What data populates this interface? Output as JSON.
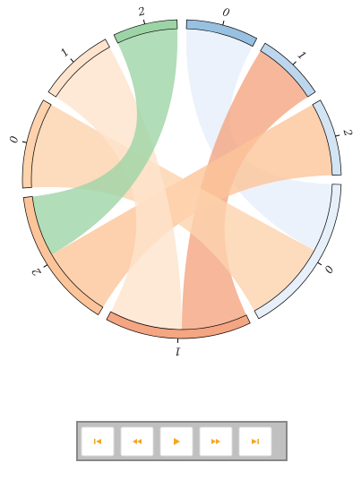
{
  "chart_data": {
    "type": "chord",
    "groups": [
      {
        "label": "0",
        "color": "#98c0e0"
      },
      {
        "label": "1",
        "color": "#bcd6ee"
      },
      {
        "label": "2",
        "color": "#d3e4f3"
      },
      {
        "label": "0",
        "color": "#e6effa"
      },
      {
        "label": "1",
        "color": "#f4a582"
      },
      {
        "label": "2",
        "color": "#fdc49a"
      },
      {
        "label": "0",
        "color": "#fdd2ac"
      },
      {
        "label": "1",
        "color": "#fee4cc"
      },
      {
        "label": "2",
        "color": "#9dd4a6"
      }
    ],
    "chords": [
      {
        "source": 3,
        "target": 0,
        "value": 28
      },
      {
        "source": 4,
        "target": 1,
        "value": 27
      },
      {
        "source": 5,
        "target": 2,
        "value": 30
      },
      {
        "source": 6,
        "target": 3,
        "value": 35
      },
      {
        "source": 7,
        "target": 4,
        "value": 30
      },
      {
        "source": 8,
        "target": 5,
        "value": 25
      }
    ]
  }
}
